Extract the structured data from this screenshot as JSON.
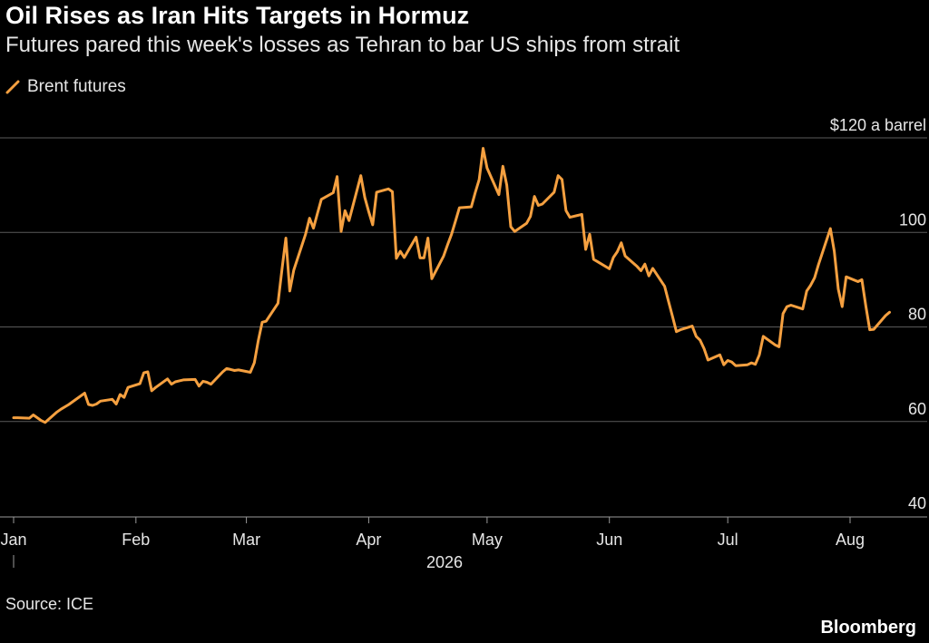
{
  "header": {
    "title": "Oil Rises as Iran Hits Targets in Hormuz",
    "subtitle": "Futures pared this week's losses as Tehran to bar US ships from strait"
  },
  "footer": {
    "source": "Source: ICE",
    "brand": "Bloomberg"
  },
  "colors": {
    "background": "#000000",
    "series": "#f5a040",
    "grid": "#555555",
    "text": "#e6e6e6"
  },
  "chart_data": {
    "type": "line",
    "title": "Oil Rises as Iran Hits Targets in Hormuz",
    "subtitle": "Futures pared this week's losses as Tehran to bar US ships from strait",
    "legend": [
      "Brent futures"
    ],
    "legend_position": "top-left",
    "y_unit_label": "$120 a barrel",
    "ylim": [
      40,
      120
    ],
    "yticks": [
      40,
      60,
      80,
      100,
      120
    ],
    "ytick_labels": [
      "40",
      "60",
      "80",
      "100",
      "$120 a barrel"
    ],
    "xlim": [
      "2026-01-01",
      "2026-08-20"
    ],
    "xticks": [
      "2026-01-01",
      "2026-02-01",
      "2026-03-01",
      "2026-04-01",
      "2026-05-01",
      "2026-06-01",
      "2026-07-01",
      "2026-08-01"
    ],
    "xtick_labels": [
      "Jan",
      "Feb",
      "Mar",
      "Apr",
      "May",
      "Jun",
      "Jul",
      "Aug"
    ],
    "x_year_label": "2026",
    "grid": "horizontal",
    "series": [
      {
        "name": "Brent futures",
        "color": "#f5a040",
        "points": [
          [
            "2026-01-01",
            60.8
          ],
          [
            "2026-01-02",
            60.8
          ],
          [
            "2026-01-05",
            60.7
          ],
          [
            "2026-01-06",
            61.4
          ],
          [
            "2026-01-07",
            60.8
          ],
          [
            "2026-01-08",
            60.2
          ],
          [
            "2026-01-09",
            59.8
          ],
          [
            "2026-01-12",
            62.0
          ],
          [
            "2026-01-13",
            62.6
          ],
          [
            "2026-01-14",
            63.1
          ],
          [
            "2026-01-15",
            63.6
          ],
          [
            "2026-01-16",
            64.2
          ],
          [
            "2026-01-19",
            66.0
          ],
          [
            "2026-01-20",
            63.6
          ],
          [
            "2026-01-21",
            63.4
          ],
          [
            "2026-01-22",
            63.7
          ],
          [
            "2026-01-23",
            64.3
          ],
          [
            "2026-01-26",
            64.7
          ],
          [
            "2026-01-27",
            63.7
          ],
          [
            "2026-01-28",
            65.7
          ],
          [
            "2026-01-29",
            65.1
          ],
          [
            "2026-01-30",
            67.2
          ],
          [
            "2026-02-02",
            68.0
          ],
          [
            "2026-02-03",
            70.3
          ],
          [
            "2026-02-04",
            70.5
          ],
          [
            "2026-02-05",
            66.5
          ],
          [
            "2026-02-06",
            67.2
          ],
          [
            "2026-02-09",
            69.0
          ],
          [
            "2026-02-10",
            67.9
          ],
          [
            "2026-02-11",
            68.4
          ],
          [
            "2026-02-12",
            68.6
          ],
          [
            "2026-02-13",
            68.8
          ],
          [
            "2026-02-16",
            68.9
          ],
          [
            "2026-02-17",
            67.5
          ],
          [
            "2026-02-18",
            68.5
          ],
          [
            "2026-02-19",
            68.3
          ],
          [
            "2026-02-20",
            67.9
          ],
          [
            "2026-02-23",
            70.5
          ],
          [
            "2026-02-24",
            71.2
          ],
          [
            "2026-02-25",
            71.0
          ],
          [
            "2026-02-26",
            70.8
          ],
          [
            "2026-02-27",
            70.9
          ],
          [
            "2026-03-02",
            70.4
          ],
          [
            "2026-03-03",
            72.4
          ],
          [
            "2026-03-04",
            77.0
          ],
          [
            "2026-03-05",
            81.0
          ],
          [
            "2026-03-06",
            81.2
          ],
          [
            "2026-03-09",
            85.0
          ],
          [
            "2026-03-10",
            92.0
          ],
          [
            "2026-03-11",
            98.8
          ],
          [
            "2026-03-12",
            87.6
          ],
          [
            "2026-03-13",
            92.0
          ],
          [
            "2026-03-16",
            99.6
          ],
          [
            "2026-03-17",
            103.0
          ],
          [
            "2026-03-18",
            100.9
          ],
          [
            "2026-03-19",
            104.0
          ],
          [
            "2026-03-20",
            107.0
          ],
          [
            "2026-03-23",
            108.4
          ],
          [
            "2026-03-24",
            111.8
          ],
          [
            "2026-03-25",
            100.2
          ],
          [
            "2026-03-26",
            104.6
          ],
          [
            "2026-03-27",
            102.5
          ],
          [
            "2026-03-30",
            112.0
          ],
          [
            "2026-03-31",
            107.4
          ],
          [
            "2026-04-01",
            104.4
          ],
          [
            "2026-04-02",
            101.6
          ],
          [
            "2026-04-03",
            108.5
          ],
          [
            "2026-04-06",
            109.2
          ],
          [
            "2026-04-07",
            108.6
          ],
          [
            "2026-04-08",
            94.5
          ],
          [
            "2026-04-09",
            96.0
          ],
          [
            "2026-04-10",
            94.7
          ],
          [
            "2026-04-13",
            99.0
          ],
          [
            "2026-04-14",
            94.6
          ],
          [
            "2026-04-15",
            94.6
          ],
          [
            "2026-04-16",
            98.8
          ],
          [
            "2026-04-17",
            90.2
          ],
          [
            "2026-04-20",
            95.0
          ],
          [
            "2026-04-21",
            97.4
          ],
          [
            "2026-04-22",
            99.6
          ],
          [
            "2026-04-23",
            102.4
          ],
          [
            "2026-04-24",
            105.2
          ],
          [
            "2026-04-27",
            105.4
          ],
          [
            "2026-04-28",
            108.4
          ],
          [
            "2026-04-29",
            111.2
          ],
          [
            "2026-04-30",
            117.8
          ],
          [
            "2026-05-01",
            113.6
          ],
          [
            "2026-05-04",
            108.0
          ],
          [
            "2026-05-05",
            114.0
          ],
          [
            "2026-05-06",
            110.0
          ],
          [
            "2026-05-07",
            101.2
          ],
          [
            "2026-05-08",
            100.2
          ],
          [
            "2026-05-11",
            101.9
          ],
          [
            "2026-05-12",
            103.4
          ],
          [
            "2026-05-13",
            107.6
          ],
          [
            "2026-05-14",
            105.7
          ],
          [
            "2026-05-15",
            106.0
          ],
          [
            "2026-05-18",
            108.5
          ],
          [
            "2026-05-19",
            112.0
          ],
          [
            "2026-05-20",
            111.2
          ],
          [
            "2026-05-21",
            104.6
          ],
          [
            "2026-05-22",
            103.2
          ],
          [
            "2026-05-25",
            103.8
          ],
          [
            "2026-05-26",
            96.4
          ],
          [
            "2026-05-27",
            99.6
          ],
          [
            "2026-05-28",
            94.3
          ],
          [
            "2026-05-29",
            93.8
          ],
          [
            "2026-06-01",
            92.3
          ],
          [
            "2026-06-02",
            94.7
          ],
          [
            "2026-06-03",
            95.9
          ],
          [
            "2026-06-04",
            97.8
          ],
          [
            "2026-06-05",
            95.0
          ],
          [
            "2026-06-08",
            92.8
          ],
          [
            "2026-06-09",
            91.9
          ],
          [
            "2026-06-10",
            93.3
          ],
          [
            "2026-06-11",
            90.8
          ],
          [
            "2026-06-12",
            92.4
          ],
          [
            "2026-06-15",
            88.6
          ],
          [
            "2026-06-16",
            85.4
          ],
          [
            "2026-06-17",
            82.2
          ],
          [
            "2026-06-18",
            79.0
          ],
          [
            "2026-06-19",
            79.4
          ],
          [
            "2026-06-22",
            80.2
          ],
          [
            "2026-06-23",
            78.0
          ],
          [
            "2026-06-24",
            77.2
          ],
          [
            "2026-06-25",
            75.4
          ],
          [
            "2026-06-26",
            73.0
          ],
          [
            "2026-06-29",
            74.1
          ],
          [
            "2026-06-30",
            72.0
          ],
          [
            "2026-07-01",
            72.9
          ],
          [
            "2026-07-02",
            72.6
          ],
          [
            "2026-07-03",
            71.8
          ],
          [
            "2026-07-06",
            72.0
          ],
          [
            "2026-07-07",
            72.4
          ],
          [
            "2026-07-08",
            72.1
          ],
          [
            "2026-07-09",
            74.1
          ],
          [
            "2026-07-10",
            78.0
          ],
          [
            "2026-07-13",
            76.2
          ],
          [
            "2026-07-14",
            75.8
          ],
          [
            "2026-07-15",
            82.8
          ],
          [
            "2026-07-16",
            84.3
          ],
          [
            "2026-07-17",
            84.6
          ],
          [
            "2026-07-20",
            83.8
          ],
          [
            "2026-07-21",
            87.6
          ],
          [
            "2026-07-22",
            88.8
          ],
          [
            "2026-07-23",
            90.4
          ],
          [
            "2026-07-24",
            93.2
          ],
          [
            "2026-07-27",
            100.8
          ],
          [
            "2026-07-28",
            96.0
          ],
          [
            "2026-07-29",
            88.0
          ],
          [
            "2026-07-30",
            84.3
          ],
          [
            "2026-07-31",
            90.6
          ],
          [
            "2026-08-03",
            89.6
          ],
          [
            "2026-08-04",
            90.0
          ],
          [
            "2026-08-05",
            84.4
          ],
          [
            "2026-08-06",
            79.4
          ],
          [
            "2026-08-07",
            79.5
          ],
          [
            "2026-08-10",
            82.4
          ],
          [
            "2026-08-11",
            83.1
          ]
        ]
      }
    ]
  }
}
